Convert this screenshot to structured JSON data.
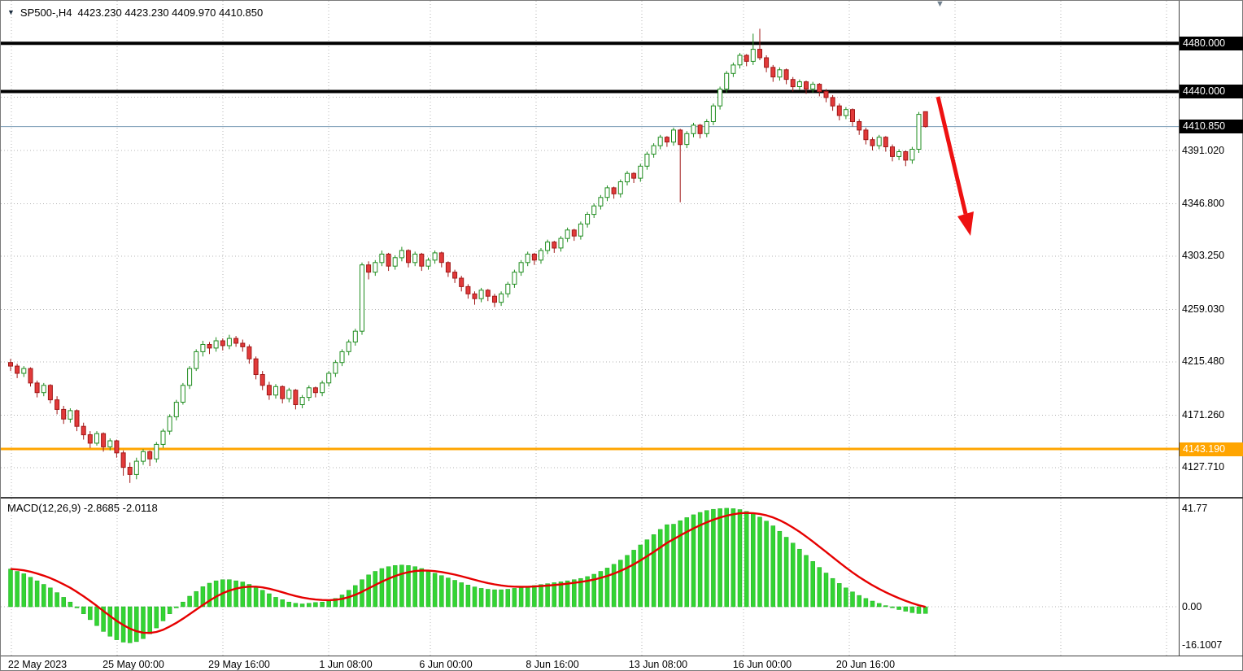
{
  "header": {
    "symbol_tf": "SP500-,H4",
    "quote_line": "4423.230 4423.230 4409.970 4410.850"
  },
  "macd": {
    "label": "MACD(12,26,9) -2.8685 -2.0118",
    "params": "12,26,9",
    "macd_value": -2.8685,
    "signal_value": -2.0118,
    "axis_items": [
      {
        "text": "41.77",
        "value": 41.77
      },
      {
        "text": "0.00",
        "value": 0
      },
      {
        "text": "-16.1007",
        "value": -16.1007
      }
    ]
  },
  "price_axis": {
    "items": [
      {
        "text": "4480.000",
        "price": 4480.0,
        "style": "black",
        "name": "resistance-price-badge-upper"
      },
      {
        "text": "4440.000",
        "price": 4440.0,
        "style": "black",
        "name": "resistance-price-badge-lower"
      },
      {
        "text": "4410.850",
        "price": 4410.85,
        "style": "black",
        "name": "current-price-badge"
      },
      {
        "text": "4391.020",
        "price": 4391.02,
        "style": "plain",
        "name": "price-axis-label"
      },
      {
        "text": "4346.800",
        "price": 4346.8,
        "style": "plain",
        "name": "price-axis-label"
      },
      {
        "text": "4303.250",
        "price": 4303.25,
        "style": "plain",
        "name": "price-axis-label"
      },
      {
        "text": "4259.030",
        "price": 4259.03,
        "style": "plain",
        "name": "price-axis-label"
      },
      {
        "text": "4215.480",
        "price": 4215.48,
        "style": "plain",
        "name": "price-axis-label"
      },
      {
        "text": "4171.260",
        "price": 4171.26,
        "style": "plain",
        "name": "price-axis-label"
      },
      {
        "text": "4143.190",
        "price": 4143.19,
        "style": "orange",
        "name": "support-price-badge"
      },
      {
        "text": "4127.710",
        "price": 4127.71,
        "style": "plain",
        "name": "price-axis-label"
      }
    ]
  },
  "time_axis": {
    "items": [
      "22 May 2023",
      "25 May 00:00",
      "29 May 16:00",
      "1 Jun 08:00",
      "6 Jun 00:00",
      "8 Jun 16:00",
      "13 Jun 08:00",
      "16 Jun 00:00",
      "20 Jun 16:00"
    ]
  },
  "colors": {
    "up": "#ffffff",
    "up_border": "#1e8c1e",
    "down": "#e23a3a",
    "down_border": "#a01818",
    "macd_hist": "#33d433",
    "macd_hist_border": "#22aa22",
    "macd_signal": "#e60000",
    "support": "#ffa500",
    "resistance": "#000000",
    "current_line": "#7a9cb5",
    "arrow": "#ee1111",
    "grid": "#b4b4b4"
  },
  "chart_data": {
    "type": "candlestick",
    "symbol": "SP500-",
    "timeframe": "H4",
    "title": "SP500-,H4",
    "quote": {
      "open": "4423.230",
      "high": "4423.230",
      "low": "4409.970",
      "close": "4410.850"
    },
    "ylim": [
      4105,
      4505
    ],
    "grid": true,
    "levels": {
      "resistance": [
        4480.0,
        4440.0
      ],
      "support": 4143.19,
      "current": 4410.85
    },
    "annotation": {
      "type": "arrow-down",
      "color": "#ee1111",
      "meaning": "projected decline"
    },
    "time_ticks": [
      "22 May 2023",
      "25 May 00:00",
      "29 May 16:00",
      "1 Jun 08:00",
      "6 Jun 00:00",
      "8 Jun 16:00",
      "13 Jun 08:00",
      "16 Jun 00:00",
      "20 Jun 16:00"
    ],
    "price_ticks": [
      4480.0,
      4440.0,
      4410.85,
      4391.02,
      4346.8,
      4303.25,
      4259.03,
      4215.48,
      4171.26,
      4143.19,
      4127.71
    ],
    "candles": [
      [
        4215,
        4218,
        4208,
        4212
      ],
      [
        4212,
        4214,
        4202,
        4206
      ],
      [
        4206,
        4212,
        4203,
        4210
      ],
      [
        4210,
        4211,
        4195,
        4198
      ],
      [
        4198,
        4200,
        4186,
        4190
      ],
      [
        4190,
        4198,
        4187,
        4196
      ],
      [
        4196,
        4197,
        4181,
        4184
      ],
      [
        4184,
        4187,
        4172,
        4176
      ],
      [
        4176,
        4179,
        4164,
        4168
      ],
      [
        4168,
        4177,
        4165,
        4175
      ],
      [
        4175,
        4176,
        4158,
        4162
      ],
      [
        4162,
        4165,
        4151,
        4155
      ],
      [
        4155,
        4158,
        4144,
        4148
      ],
      [
        4148,
        4158,
        4146,
        4156
      ],
      [
        4156,
        4157,
        4141,
        4145
      ],
      [
        4145,
        4152,
        4142,
        4150
      ],
      [
        4150,
        4151,
        4136,
        4140
      ],
      [
        4140,
        4142,
        4121,
        4128
      ],
      [
        4128,
        4132,
        4115,
        4122
      ],
      [
        4122,
        4136,
        4118,
        4133
      ],
      [
        4133,
        4143,
        4130,
        4141
      ],
      [
        4141,
        4142,
        4129,
        4135
      ],
      [
        4135,
        4149,
        4132,
        4147
      ],
      [
        4147,
        4160,
        4144,
        4158
      ],
      [
        4158,
        4172,
        4155,
        4170
      ],
      [
        4170,
        4184,
        4167,
        4182
      ],
      [
        4182,
        4198,
        4180,
        4196
      ],
      [
        4196,
        4212,
        4193,
        4210
      ],
      [
        4210,
        4226,
        4208,
        4224
      ],
      [
        4224,
        4233,
        4220,
        4230
      ],
      [
        4230,
        4232,
        4222,
        4227
      ],
      [
        4227,
        4236,
        4224,
        4233
      ],
      [
        4233,
        4235,
        4225,
        4229
      ],
      [
        4229,
        4238,
        4226,
        4235
      ],
      [
        4235,
        4237,
        4228,
        4231
      ],
      [
        4231,
        4234,
        4224,
        4228
      ],
      [
        4228,
        4230,
        4214,
        4218
      ],
      [
        4218,
        4220,
        4201,
        4205
      ],
      [
        4205,
        4208,
        4192,
        4196
      ],
      [
        4196,
        4199,
        4184,
        4188
      ],
      [
        4188,
        4197,
        4185,
        4195
      ],
      [
        4195,
        4196,
        4181,
        4185
      ],
      [
        4185,
        4194,
        4182,
        4192
      ],
      [
        4192,
        4193,
        4176,
        4180
      ],
      [
        4180,
        4188,
        4177,
        4186
      ],
      [
        4186,
        4196,
        4183,
        4194
      ],
      [
        4194,
        4195,
        4186,
        4190
      ],
      [
        4190,
        4200,
        4187,
        4198
      ],
      [
        4198,
        4208,
        4195,
        4206
      ],
      [
        4206,
        4217,
        4203,
        4215
      ],
      [
        4215,
        4226,
        4212,
        4224
      ],
      [
        4224,
        4234,
        4221,
        4232
      ],
      [
        4232,
        4243,
        4229,
        4241
      ],
      [
        4241,
        4298,
        4238,
        4296
      ],
      [
        4296,
        4299,
        4284,
        4290
      ],
      [
        4290,
        4300,
        4287,
        4298
      ],
      [
        4298,
        4308,
        4295,
        4305
      ],
      [
        4305,
        4306,
        4291,
        4295
      ],
      [
        4295,
        4304,
        4292,
        4302
      ],
      [
        4302,
        4311,
        4299,
        4308
      ],
      [
        4308,
        4309,
        4294,
        4298
      ],
      [
        4298,
        4307,
        4295,
        4305
      ],
      [
        4305,
        4306,
        4291,
        4295
      ],
      [
        4295,
        4302,
        4292,
        4300
      ],
      [
        4300,
        4308,
        4297,
        4306
      ],
      [
        4306,
        4307,
        4294,
        4298
      ],
      [
        4298,
        4299,
        4286,
        4290
      ],
      [
        4290,
        4292,
        4281,
        4285
      ],
      [
        4285,
        4287,
        4274,
        4278
      ],
      [
        4278,
        4280,
        4268,
        4272
      ],
      [
        4272,
        4274,
        4263,
        4268
      ],
      [
        4268,
        4277,
        4265,
        4275
      ],
      [
        4275,
        4276,
        4266,
        4270
      ],
      [
        4270,
        4272,
        4261,
        4265
      ],
      [
        4265,
        4274,
        4262,
        4272
      ],
      [
        4272,
        4282,
        4269,
        4280
      ],
      [
        4280,
        4292,
        4277,
        4290
      ],
      [
        4290,
        4300,
        4287,
        4298
      ],
      [
        4298,
        4307,
        4295,
        4305
      ],
      [
        4305,
        4306,
        4296,
        4300
      ],
      [
        4300,
        4310,
        4297,
        4308
      ],
      [
        4308,
        4317,
        4305,
        4315
      ],
      [
        4315,
        4316,
        4306,
        4310
      ],
      [
        4310,
        4320,
        4307,
        4318
      ],
      [
        4318,
        4327,
        4315,
        4325
      ],
      [
        4325,
        4326,
        4316,
        4320
      ],
      [
        4320,
        4332,
        4317,
        4330
      ],
      [
        4330,
        4340,
        4327,
        4338
      ],
      [
        4338,
        4347,
        4335,
        4345
      ],
      [
        4345,
        4354,
        4342,
        4352
      ],
      [
        4352,
        4362,
        4349,
        4360
      ],
      [
        4360,
        4361,
        4351,
        4355
      ],
      [
        4355,
        4367,
        4352,
        4365
      ],
      [
        4365,
        4374,
        4362,
        4372
      ],
      [
        4372,
        4373,
        4364,
        4368
      ],
      [
        4368,
        4380,
        4365,
        4378
      ],
      [
        4378,
        4390,
        4375,
        4388
      ],
      [
        4388,
        4397,
        4385,
        4395
      ],
      [
        4395,
        4404,
        4392,
        4402
      ],
      [
        4402,
        4403,
        4394,
        4398
      ],
      [
        4398,
        4410,
        4395,
        4408
      ],
      [
        4408,
        4409,
        4348,
        4396
      ],
      [
        4396,
        4407,
        4393,
        4405
      ],
      [
        4405,
        4414,
        4402,
        4412
      ],
      [
        4412,
        4413,
        4401,
        4405
      ],
      [
        4405,
        4417,
        4402,
        4415
      ],
      [
        4415,
        4430,
        4412,
        4428
      ],
      [
        4428,
        4444,
        4425,
        4442
      ],
      [
        4442,
        4457,
        4439,
        4455
      ],
      [
        4455,
        4464,
        4452,
        4462
      ],
      [
        4462,
        4472,
        4459,
        4470
      ],
      [
        4470,
        4471,
        4461,
        4465
      ],
      [
        4465,
        4488,
        4462,
        4475
      ],
      [
        4475,
        4492,
        4466,
        4468
      ],
      [
        4468,
        4470,
        4456,
        4460
      ],
      [
        4460,
        4462,
        4448,
        4452
      ],
      [
        4452,
        4460,
        4449,
        4458
      ],
      [
        4458,
        4459,
        4446,
        4450
      ],
      [
        4450,
        4452,
        4440,
        4444
      ],
      [
        4444,
        4450,
        4441,
        4448
      ],
      [
        4448,
        4449,
        4438,
        4442
      ],
      [
        4442,
        4448,
        4439,
        4446
      ],
      [
        4446,
        4447,
        4436,
        4440
      ],
      [
        4440,
        4442,
        4431,
        4435
      ],
      [
        4435,
        4437,
        4424,
        4428
      ],
      [
        4428,
        4430,
        4416,
        4420
      ],
      [
        4420,
        4427,
        4417,
        4425
      ],
      [
        4425,
        4426,
        4411,
        4415
      ],
      [
        4415,
        4417,
        4404,
        4408
      ],
      [
        4408,
        4410,
        4396,
        4400
      ],
      [
        4400,
        4402,
        4391,
        4395
      ],
      [
        4395,
        4404,
        4392,
        4402
      ],
      [
        4402,
        4403,
        4390,
        4394
      ],
      [
        4394,
        4396,
        4382,
        4386
      ],
      [
        4386,
        4392,
        4383,
        4390
      ],
      [
        4390,
        4391,
        4378,
        4383
      ],
      [
        4383,
        4394,
        4380,
        4392
      ],
      [
        4392,
        4423,
        4389,
        4421
      ],
      [
        4423.23,
        4423.23,
        4409.97,
        4410.85
      ]
    ],
    "macd_histogram": [
      16,
      15,
      14,
      12.5,
      11,
      9.5,
      8,
      6,
      4,
      2,
      -0.5,
      -3,
      -5.5,
      -8,
      -10.5,
      -12.5,
      -14,
      -15,
      -15.3,
      -14.8,
      -13.5,
      -11.5,
      -9,
      -6,
      -3,
      -0.5,
      2,
      4.5,
      6.5,
      8.5,
      10,
      11,
      11.5,
      11.5,
      11,
      10.5,
      9.5,
      8.5,
      7,
      5.5,
      4,
      3,
      2,
      1.5,
      1.2,
      1.5,
      1.8,
      2,
      2.5,
      3.5,
      5,
      7,
      9,
      11.5,
      13.5,
      15,
      16.2,
      17,
      17.5,
      17.7,
      17.5,
      17,
      16.2,
      15.2,
      14.2,
      13.2,
      12.2,
      11.2,
      10.2,
      9.2,
      8.4,
      7.8,
      7.4,
      7.2,
      7.2,
      7.4,
      7.8,
      8.2,
      8.6,
      9,
      9.4,
      9.8,
      10.2,
      10.6,
      11,
      11.5,
      12,
      12.8,
      13.8,
      15,
      16.4,
      18,
      19.8,
      21.8,
      24,
      26.2,
      28.4,
      30.6,
      32.8,
      34.8,
      35,
      36.5,
      37.8,
      39,
      40,
      40.8,
      41.3,
      41.6,
      41.77,
      41.6,
      41.2,
      40.4,
      39.4,
      38,
      36.3,
      34.3,
      32,
      29.5,
      27,
      24.4,
      21.8,
      19.2,
      16.7,
      14.3,
      12,
      9.9,
      8,
      6.3,
      4.8,
      3.5,
      2.4,
      1.4,
      0.5,
      -0.4,
      -1.2,
      -1.9,
      -2.5,
      -2.9,
      -2.8685
    ],
    "macd_axis": {
      "max": 41.77,
      "zero": 0.0,
      "min": -16.1007
    }
  }
}
